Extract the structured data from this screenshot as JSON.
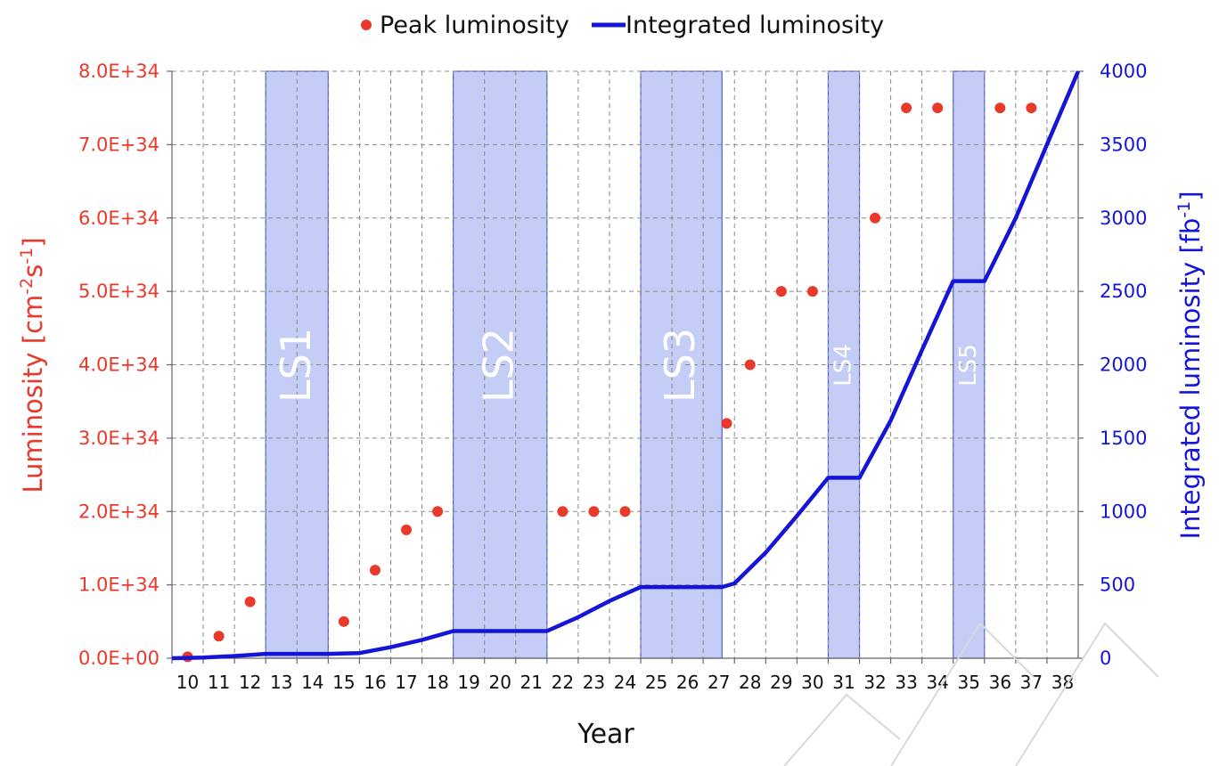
{
  "chart_data": {
    "type": "line",
    "title": "",
    "xlabel": "Year",
    "ylabel_left": "Luminosity [cm",
    "ylabel_left_sup1": "-2",
    "ylabel_left_mid": "s",
    "ylabel_left_sup2": "-1",
    "ylabel_left_end": "]",
    "ylabel_right": "Integrated luminosity [fb",
    "ylabel_right_sup": "-1",
    "ylabel_right_end": "]",
    "x_ticks": [
      "10",
      "11",
      "12",
      "13",
      "14",
      "15",
      "16",
      "17",
      "18",
      "19",
      "20",
      "21",
      "22",
      "23",
      "24",
      "25",
      "26",
      "27",
      "28",
      "29",
      "30",
      "31",
      "32",
      "33",
      "34",
      "35",
      "36",
      "37",
      "38"
    ],
    "xlim": [
      10,
      38
    ],
    "y_left_ticks": [
      "0.0E+00",
      "1.0E+34",
      "2.0E+34",
      "3.0E+34",
      "4.0E+34",
      "5.0E+34",
      "6.0E+34",
      "7.0E+34",
      "8.0E+34"
    ],
    "ylim_left": [
      0,
      8e+34
    ],
    "y_right_ticks": [
      "0",
      "500",
      "1000",
      "1500",
      "2000",
      "2500",
      "3000",
      "3500",
      "4000"
    ],
    "ylim_right": [
      0,
      4000
    ],
    "grid": true,
    "legend_position": "top-center",
    "colors": {
      "peak": "#e8392b",
      "integrated": "#1515d8",
      "shade_fill": "#c3cdf6",
      "shade_stroke": "#4a5ae8",
      "grid": "#8a8a8a"
    },
    "shutdowns": [
      {
        "label": "LS1",
        "x_start": 13.0,
        "x_end": 15.0,
        "large": true
      },
      {
        "label": "LS2",
        "x_start": 19.0,
        "x_end": 22.0,
        "large": true
      },
      {
        "label": "LS3",
        "x_start": 25.0,
        "x_end": 27.6,
        "large": true
      },
      {
        "label": "LS4",
        "x_start": 31.0,
        "x_end": 32.0,
        "large": false
      },
      {
        "label": "LS5",
        "x_start": 35.0,
        "x_end": 36.0,
        "large": false
      }
    ],
    "series": [
      {
        "name": "Peak luminosity",
        "kind": "scatter",
        "points": [
          [
            10.5,
            2e+32
          ],
          [
            11.5,
            3e+33
          ],
          [
            12.5,
            7.7e+33
          ],
          [
            15.5,
            5e+33
          ],
          [
            16.5,
            1.2e+34
          ],
          [
            17.5,
            1.75e+34
          ],
          [
            18.5,
            2e+34
          ],
          [
            22.5,
            2e+34
          ],
          [
            23.5,
            2e+34
          ],
          [
            24.5,
            2e+34
          ],
          [
            27.75,
            3.2e+34
          ],
          [
            28.5,
            4e+34
          ],
          [
            29.5,
            5e+34
          ],
          [
            30.5,
            5e+34
          ],
          [
            32.5,
            6e+34
          ],
          [
            33.5,
            7.5e+34
          ],
          [
            34.5,
            7.5e+34
          ],
          [
            36.5,
            7.5e+34
          ],
          [
            37.5,
            7.5e+34
          ]
        ]
      },
      {
        "name": "Integrated luminosity",
        "kind": "line",
        "points": [
          [
            10,
            0
          ],
          [
            11,
            5
          ],
          [
            12,
            15
          ],
          [
            13,
            30
          ],
          [
            15,
            30
          ],
          [
            16,
            35
          ],
          [
            17,
            75
          ],
          [
            18,
            125
          ],
          [
            19,
            185
          ],
          [
            22,
            185
          ],
          [
            23,
            280
          ],
          [
            24,
            390
          ],
          [
            25,
            485
          ],
          [
            27.6,
            485
          ],
          [
            28,
            510
          ],
          [
            29,
            720
          ],
          [
            30,
            970
          ],
          [
            31,
            1230
          ],
          [
            32,
            1230
          ],
          [
            33,
            1620
          ],
          [
            34,
            2100
          ],
          [
            35,
            2570
          ],
          [
            36,
            2570
          ],
          [
            37,
            3000
          ],
          [
            38,
            3500
          ],
          [
            39,
            4000
          ]
        ]
      }
    ]
  }
}
